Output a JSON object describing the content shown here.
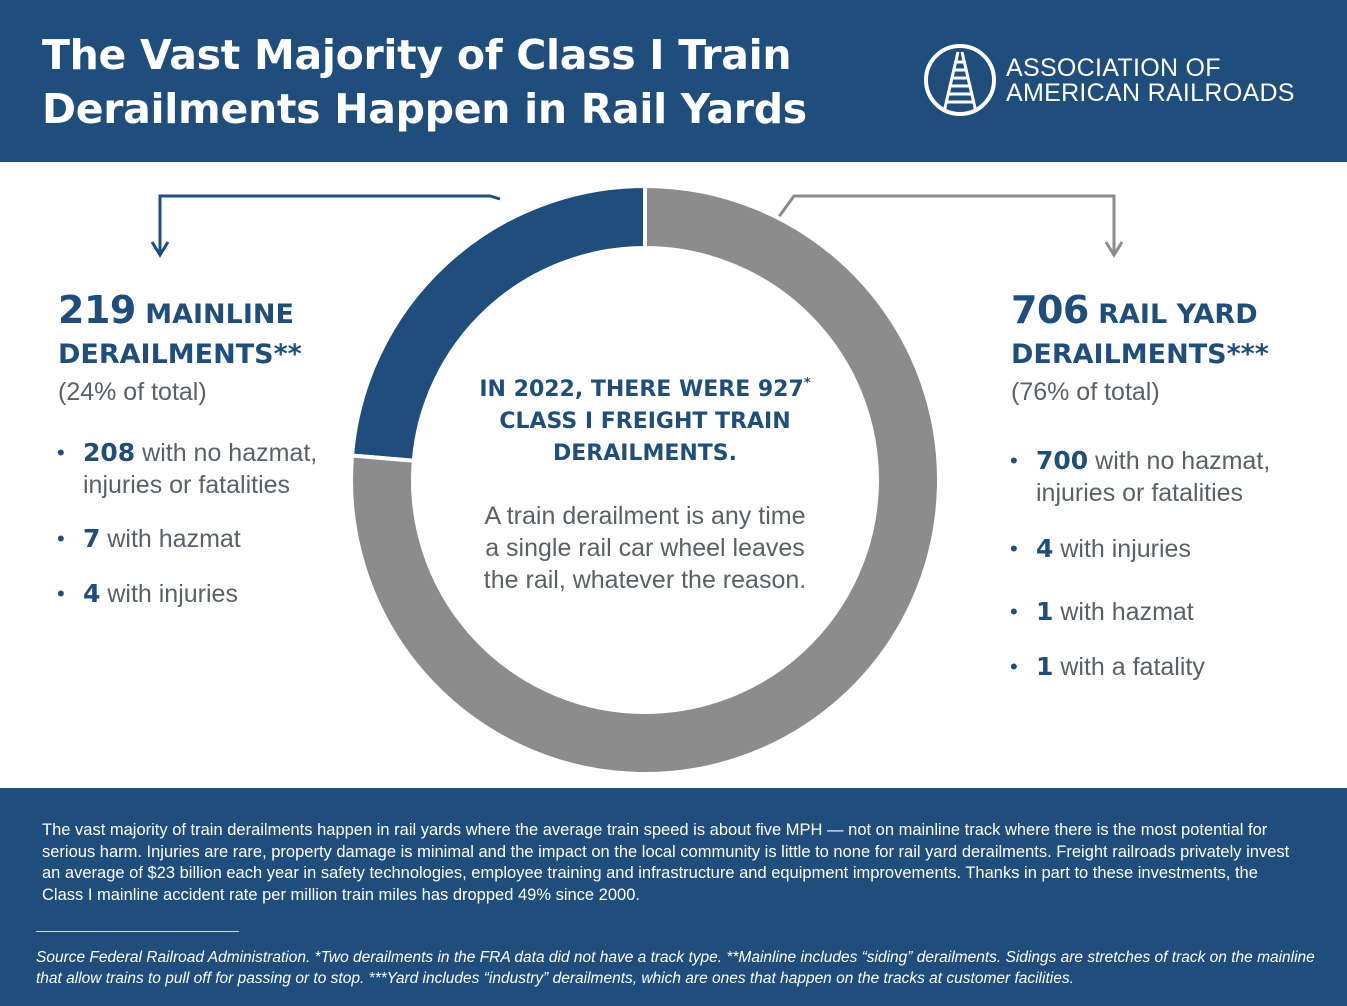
{
  "header": {
    "title_line1": "The Vast Majority of Class I Train",
    "title_line2": "Derailments Happen in Rail Yards",
    "logo_line1": "ASSOCIATION OF",
    "logo_line2": "AMERICAN RAILROADS",
    "logo_icon": "railroad-track-icon"
  },
  "colors": {
    "navy": "#1f4e7c",
    "gray": "#8c8c8c",
    "text_gray": "#5b6066",
    "white": "#ffffff"
  },
  "center": {
    "heading_line1_pre": "IN 2022, THERE WERE 927",
    "heading_line1_mark": "*",
    "heading_line2": "CLASS I FREIGHT TRAIN",
    "heading_line3": "DERAILMENTS.",
    "desc_line1": "A train derailment is any time",
    "desc_line2": "a single rail car wheel leaves",
    "desc_line3": "the rail, whatever the reason."
  },
  "mainline": {
    "count": "219",
    "label_line1": "MAINLINE",
    "label_line2": "DERAILMENTS**",
    "pct": "(24% of total)",
    "items": [
      {
        "num": "208",
        "text": " with no hazmat,",
        "text2": "injuries or fatalities"
      },
      {
        "num": "7",
        "text": " with hazmat"
      },
      {
        "num": "4",
        "text": " with injuries"
      }
    ]
  },
  "railyard": {
    "count": "706",
    "label_line1": "RAIL YARD",
    "label_line2": "DERAILMENTS***",
    "pct": "(76% of total)",
    "items": [
      {
        "num": "700",
        "text": " with no hazmat,",
        "text2": "injuries or fatalities"
      },
      {
        "num": "4",
        "text": " with injuries"
      },
      {
        "num": "1",
        "text": " with hazmat"
      },
      {
        "num": "1",
        "text": " with a fatality"
      }
    ]
  },
  "chart_data": {
    "type": "pie",
    "style": "donut",
    "total": 927,
    "slices": [
      {
        "label": "MAINLINE DERAILMENTS**",
        "value": 219,
        "color": "#1f4e7c"
      },
      {
        "label": "RAIL YARD DERAILMENTS***",
        "value": 706,
        "color": "#8c8c8c"
      }
    ]
  },
  "footer": {
    "body": "The vast majority of train derailments happen in rail yards where the average train speed is about five MPH — not on mainline track where there is the most potential for serious harm. Injuries are rare, property damage is minimal and the impact on the local community is little to none for rail yard derailments. Freight railroads privately invest an average of $23 billion each year in safety technologies, employee training and infrastructure and equipment improvements. Thanks in part to these investments, the Class I mainline accident rate per million train miles has dropped 49% since 2000.",
    "source": "Source  Federal Railroad Administration. *Two derailments in the FRA data did not have a track type. **Mainline includes “siding” derailments. Sidings are stretches of track on the mainline that allow trains to pull off for passing or to stop. ***Yard includes “industry” derailments, which are ones that happen on the tracks at customer facilities."
  }
}
